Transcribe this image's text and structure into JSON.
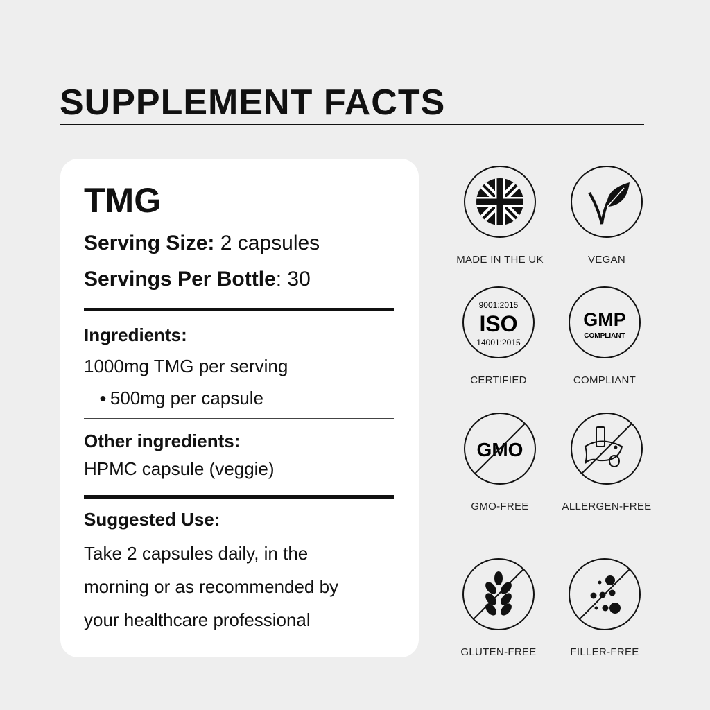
{
  "title": "SUPPLEMENT FACTS",
  "card": {
    "product": "TMG",
    "serving_size_label": "Serving Size:",
    "serving_size_value": " 2 capsules",
    "servings_label": "Servings Per Bottle",
    "servings_value": ": 30",
    "ingredients_heading": "Ingredients:",
    "ingredients_line": "1000mg TMG per serving",
    "ingredients_bullet": "500mg per capsule",
    "other_heading": "Other ingredients:",
    "other_value": "HPMC capsule (veggie)",
    "use_heading": "Suggested Use:",
    "use_lines": [
      "Take 2 capsules daily, in the",
      "morning or as recommended by",
      "your healthcare professional"
    ]
  },
  "badges": [
    {
      "label": "MADE IN THE UK",
      "icon": "uk-flag-icon"
    },
    {
      "label": "VEGAN",
      "icon": "vegan-leaf-icon"
    },
    {
      "label": "CERTIFIED",
      "icon": "iso-icon",
      "top": "9001:2015",
      "main": "ISO",
      "bottom": "14001:2015"
    },
    {
      "label": "COMPLIANT",
      "icon": "gmp-icon",
      "main": "GMP",
      "sub": "COMPLIANT"
    },
    {
      "label": "GMO-FREE",
      "icon": "gmo-crossed-icon",
      "main": "GMO"
    },
    {
      "label": "ALLERGEN-FREE",
      "icon": "allergen-crossed-icon"
    },
    {
      "label": "GLUTEN-FREE",
      "icon": "wheat-crossed-icon"
    },
    {
      "label": "FILLER-FREE",
      "icon": "filler-crossed-icon"
    }
  ]
}
